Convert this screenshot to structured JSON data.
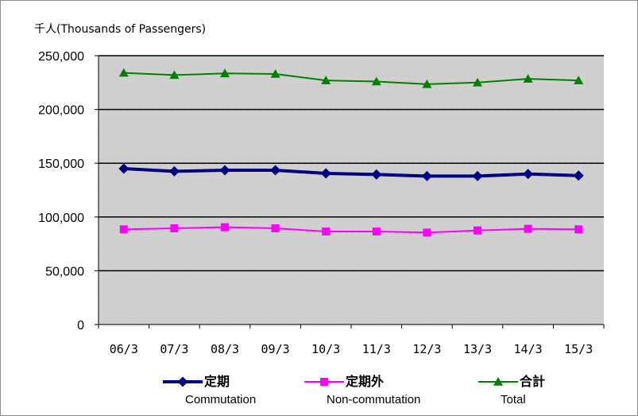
{
  "chart_data": {
    "type": "line",
    "unit_label": "千人(Thousands of  Passengers)",
    "categories": [
      "06/3",
      "07/3",
      "08/3",
      "09/3",
      "10/3",
      "11/3",
      "12/3",
      "13/3",
      "14/3",
      "15/3"
    ],
    "ylim": [
      0,
      250000
    ],
    "yticks": [
      {
        "value": 0,
        "label": "0"
      },
      {
        "value": 50000,
        "label": "50,000"
      },
      {
        "value": 100000,
        "label": "100,000"
      },
      {
        "value": 150000,
        "label": "150,000"
      },
      {
        "value": 200000,
        "label": "200,000"
      },
      {
        "value": 250000,
        "label": "250,000"
      }
    ],
    "grid": true,
    "legend_position": "bottom",
    "series": [
      {
        "name": "定期",
        "name_en": "Commutation",
        "color": "#000080",
        "marker": "diamond",
        "values": [
          145000,
          142500,
          143500,
          143500,
          140500,
          139500,
          138000,
          138000,
          140000,
          138500
        ]
      },
      {
        "name": "定期外",
        "name_en": "Non-commutation",
        "color": "#ff00ff",
        "marker": "square",
        "values": [
          88500,
          89500,
          90500,
          89500,
          86500,
          86500,
          85500,
          87500,
          89000,
          88500
        ]
      },
      {
        "name": "合計",
        "name_en": "Total",
        "color": "#008000",
        "marker": "triangle",
        "values": [
          234000,
          232000,
          233500,
          233000,
          227000,
          226000,
          223500,
          225000,
          228500,
          227000
        ]
      }
    ]
  }
}
